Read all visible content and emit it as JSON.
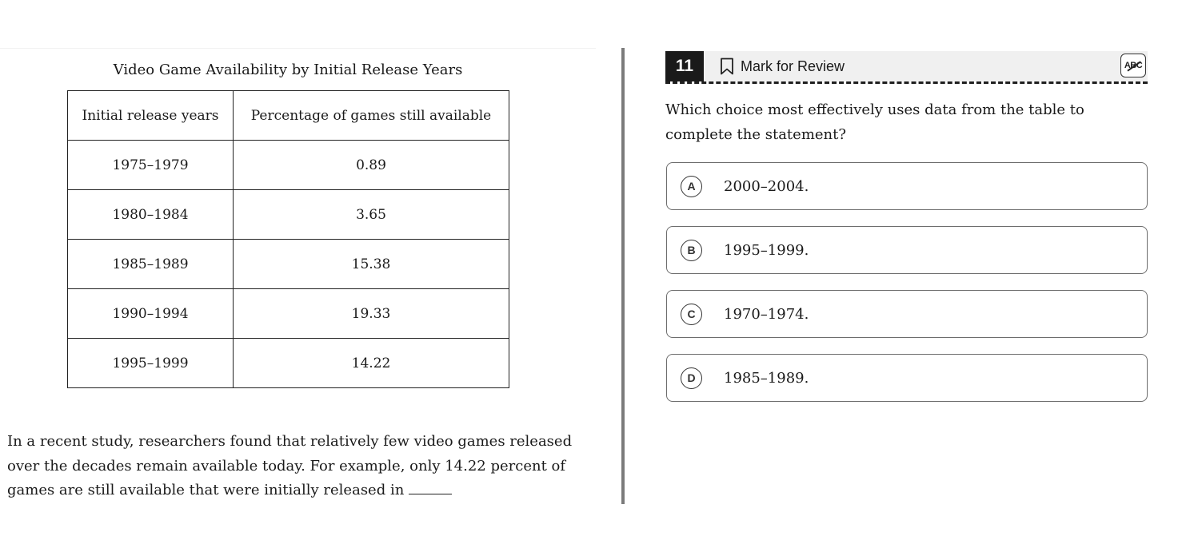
{
  "passage_pane": {
    "table_title": "Video Game Availability by Initial Release Years",
    "table": {
      "headers": [
        "Initial release years",
        "Percentage of games still available"
      ],
      "rows": [
        [
          "1975–1979",
          "0.89"
        ],
        [
          "1980–1984",
          "3.65"
        ],
        [
          "1985–1989",
          "15.38"
        ],
        [
          "1990–1994",
          "19.33"
        ],
        [
          "1995–1999",
          "14.22"
        ]
      ]
    },
    "passage_text": "In a recent study, researchers found that relatively few video games released over the decades remain available today. For example, only 14.22 percent of games are still available that were initially released in"
  },
  "question_pane": {
    "number": "11",
    "mark_for_review_label": "Mark for Review",
    "abc_label": "ABC",
    "prompt": "Which choice most effectively uses data from the table to complete the statement?",
    "choices": [
      {
        "letter": "A",
        "text": "2000–2004."
      },
      {
        "letter": "B",
        "text": "1995–1999."
      },
      {
        "letter": "C",
        "text": "1970–1974."
      },
      {
        "letter": "D",
        "text": "1985–1989."
      }
    ]
  },
  "icons": {
    "bookmark": "bookmark-icon",
    "abc_eliminator": "strikethrough-abc-icon"
  }
}
